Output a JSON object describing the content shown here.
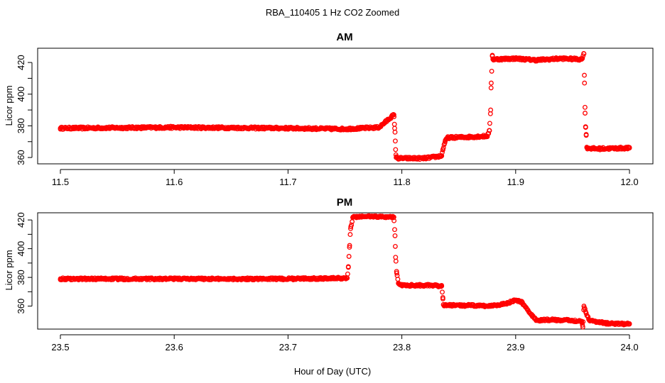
{
  "figure": {
    "title": "RBA_110405  1 Hz CO2 Zoomed",
    "xlabel": "Hour of Day (UTC)"
  },
  "colors": {
    "points": "#ff0000",
    "axes": "#000000",
    "background": "#ffffff"
  },
  "chart_data": [
    {
      "type": "scatter",
      "title": "AM",
      "ylabel": "Licor ppm",
      "xlim": [
        11.5,
        12.0
      ],
      "ylim": [
        356,
        429
      ],
      "x_ticks": [
        11.5,
        11.6,
        11.7,
        11.8,
        11.9,
        12.0
      ],
      "x_tick_labels": [
        "11.5",
        "11.6",
        "11.7",
        "11.8",
        "11.9",
        "12.0"
      ],
      "y_ticks": [
        360,
        380,
        400,
        420
      ],
      "y_tick_labels": [
        "360",
        "380",
        "400",
        "420"
      ],
      "grid": false,
      "series": [
        {
          "x": [
            11.5,
            11.6,
            11.7,
            11.75,
            11.78,
            11.793,
            11.7935,
            11.794,
            11.7945,
            11.795,
            11.797,
            11.82,
            11.835,
            11.836,
            11.838,
            11.84,
            11.86,
            11.875,
            11.877,
            11.878,
            11.8785,
            11.8795,
            11.88,
            11.9,
            11.918,
            11.94,
            11.958,
            11.96,
            11.9605,
            11.961,
            11.9615,
            11.962,
            11.9625,
            11.963,
            11.97,
            12.0
          ],
          "y": [
            378.5,
            379.0,
            378.5,
            378.0,
            379.0,
            387.0,
            381.0,
            376.0,
            365.0,
            360.0,
            359.5,
            359.5,
            361.0,
            365.0,
            370.0,
            372.5,
            373.0,
            373.5,
            377.0,
            390.0,
            407.0,
            424.5,
            422.0,
            422.5,
            421.5,
            422.5,
            422.0,
            425.5,
            407.0,
            388.0,
            379.0,
            374.0,
            366.5,
            366.0,
            365.5,
            366.0
          ]
        }
      ]
    },
    {
      "type": "scatter",
      "title": "PM",
      "ylabel": "Licor ppm",
      "xlim": [
        23.5,
        24.0
      ],
      "ylim": [
        344,
        425
      ],
      "x_ticks": [
        23.5,
        23.6,
        23.7,
        23.8,
        23.9,
        24.0
      ],
      "x_tick_labels": [
        "23.5",
        "23.6",
        "23.7",
        "23.8",
        "23.9",
        "24.0"
      ],
      "y_ticks": [
        360,
        380,
        400,
        420
      ],
      "y_tick_labels": [
        "360",
        "380",
        "400",
        "420"
      ],
      "grid": false,
      "series": [
        {
          "x": [
            23.5,
            23.6,
            23.7,
            23.752,
            23.753,
            23.754,
            23.755,
            23.757,
            23.77,
            23.793,
            23.794,
            23.7945,
            23.7955,
            23.797,
            23.8,
            23.82,
            23.835,
            23.836,
            23.8365,
            23.838,
            23.86,
            23.875,
            23.89,
            23.9,
            23.905,
            23.918,
            23.93,
            23.95,
            23.958,
            23.959,
            23.96,
            23.962,
            23.965,
            23.98,
            24.0
          ],
          "y": [
            379.0,
            379.0,
            379.0,
            379.5,
            387.0,
            401.0,
            414.0,
            422.0,
            422.5,
            422.0,
            409.0,
            394.0,
            383.0,
            376.0,
            374.5,
            374.5,
            374.0,
            366.0,
            361.0,
            360.5,
            360.5,
            360.0,
            361.5,
            364.0,
            363.0,
            350.0,
            350.5,
            350.0,
            349.5,
            345.5,
            360.0,
            355.0,
            350.0,
            348.0,
            347.5
          ]
        }
      ]
    }
  ]
}
